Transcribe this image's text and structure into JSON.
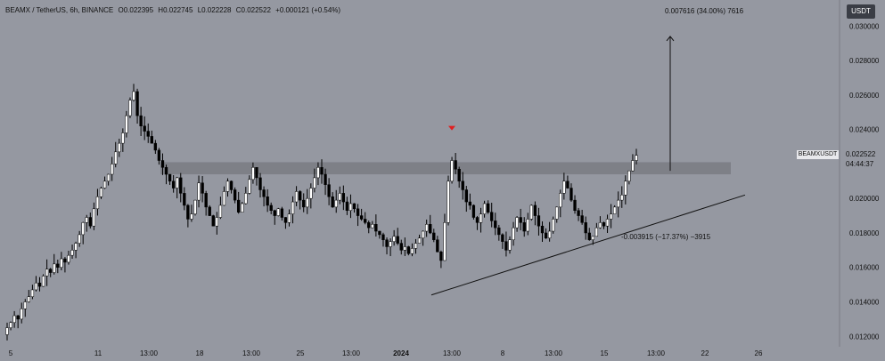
{
  "header": {
    "pair": "BEAMX / TetherUS, 6h, BINANCE",
    "open": "O0.022395",
    "high": "H0.022745",
    "low": "L0.022228",
    "close": "C0.022522",
    "change": "+0.000121 (+0.54%)"
  },
  "currency_badge": "USDT",
  "price_tag": {
    "symbol": "BEAMXUSDT",
    "last": "0.022522",
    "countdown": "04:44:37"
  },
  "annotations": {
    "target": "0.007616 (34.00%) 7616",
    "drop": "-0.003915 (−17.37%) −3915"
  },
  "colors": {
    "background": "#9598a1",
    "candle_up": "#ffffff",
    "candle_down": "#000000",
    "zone": "#7e8087",
    "marker": "#e02020"
  },
  "chart_data": {
    "type": "candlestick",
    "y_ticks": [
      "0.030000",
      "0.028000",
      "0.026000",
      "0.024000",
      "0.020000",
      "0.018000",
      "0.016000",
      "0.014000",
      "0.012000"
    ],
    "x_ticks": [
      "5",
      "11",
      "13:00",
      "18",
      "13:00",
      "25",
      "13:00",
      "2024",
      "13:00",
      "8",
      "13:00",
      "15",
      "13:00",
      "22",
      "26"
    ],
    "ylim": [
      0.0115,
      0.0312
    ],
    "resistance_zone": [
      0.0214,
      0.0221
    ],
    "ascending_trendline": {
      "from": [
        "Jan 3",
        0.0144
      ],
      "to": [
        "Jan 26",
        0.0202
      ]
    },
    "projected_target_pct": "34.00%",
    "closes": [
      0.0125,
      0.0128,
      0.0132,
      0.013,
      0.0136,
      0.014,
      0.0143,
      0.0147,
      0.0151,
      0.0149,
      0.0155,
      0.0159,
      0.0157,
      0.0162,
      0.016,
      0.0165,
      0.0163,
      0.0167,
      0.017,
      0.0174,
      0.0179,
      0.0186,
      0.0189,
      0.0184,
      0.0194,
      0.0201,
      0.0206,
      0.021,
      0.0214,
      0.022,
      0.0227,
      0.0232,
      0.0238,
      0.0248,
      0.0257,
      0.0262,
      0.0248,
      0.0242,
      0.0239,
      0.0236,
      0.0232,
      0.0228,
      0.0222,
      0.0218,
      0.0214,
      0.021,
      0.0206,
      0.0212,
      0.0203,
      0.0196,
      0.0188,
      0.0191,
      0.0199,
      0.0209,
      0.0203,
      0.0195,
      0.019,
      0.0184,
      0.0189,
      0.0196,
      0.0204,
      0.021,
      0.0205,
      0.0199,
      0.0192,
      0.0197,
      0.0203,
      0.0211,
      0.0218,
      0.0212,
      0.0205,
      0.0201,
      0.0196,
      0.0193,
      0.019,
      0.0194,
      0.0189,
      0.0186,
      0.0191,
      0.0198,
      0.0204,
      0.0199,
      0.0195,
      0.02,
      0.0206,
      0.0212,
      0.0218,
      0.0214,
      0.0208,
      0.0201,
      0.0195,
      0.0199,
      0.0203,
      0.0198,
      0.0193,
      0.0197,
      0.0194,
      0.019,
      0.0188,
      0.0186,
      0.0183,
      0.0185,
      0.0181,
      0.0179,
      0.0176,
      0.0172,
      0.0175,
      0.0178,
      0.0174,
      0.017,
      0.0172,
      0.0168,
      0.0171,
      0.0174,
      0.0177,
      0.0181,
      0.0185,
      0.018,
      0.0176,
      0.0169,
      0.0164,
      0.0186,
      0.021,
      0.0222,
      0.0217,
      0.021,
      0.0205,
      0.0198,
      0.0196,
      0.0189,
      0.0186,
      0.0191,
      0.0197,
      0.0192,
      0.0187,
      0.0183,
      0.0179,
      0.0175,
      0.017,
      0.0176,
      0.0183,
      0.0189,
      0.0186,
      0.0181,
      0.0188,
      0.0196,
      0.019,
      0.0184,
      0.018,
      0.0177,
      0.0181,
      0.0188,
      0.0195,
      0.0203,
      0.021,
      0.0206,
      0.0199,
      0.0193,
      0.019,
      0.0186,
      0.018,
      0.0176,
      0.0178,
      0.0183,
      0.0186,
      0.0184,
      0.0188,
      0.0191,
      0.0195,
      0.0199,
      0.0202,
      0.021,
      0.0216,
      0.0222,
      0.0225
    ]
  }
}
